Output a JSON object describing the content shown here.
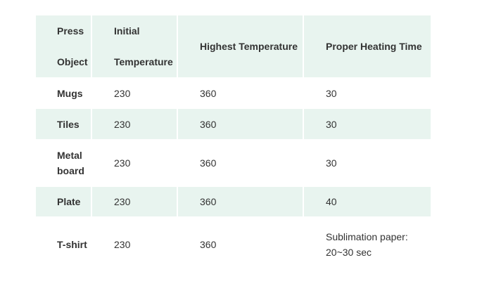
{
  "table": {
    "header": [
      "Press Object",
      "Initial Temperature",
      "Highest Temperature",
      "Proper Heating Time"
    ],
    "rows": [
      [
        "Mugs",
        "230",
        "360",
        "30"
      ],
      [
        "Tiles",
        "230",
        "360",
        "30"
      ],
      [
        "Metal board",
        "230",
        "360",
        "30"
      ],
      [
        "Plate",
        "230",
        "360",
        "40"
      ],
      [
        "T-shirt",
        "230",
        "360",
        "Sublimation paper: 20~30 sec"
      ]
    ]
  }
}
